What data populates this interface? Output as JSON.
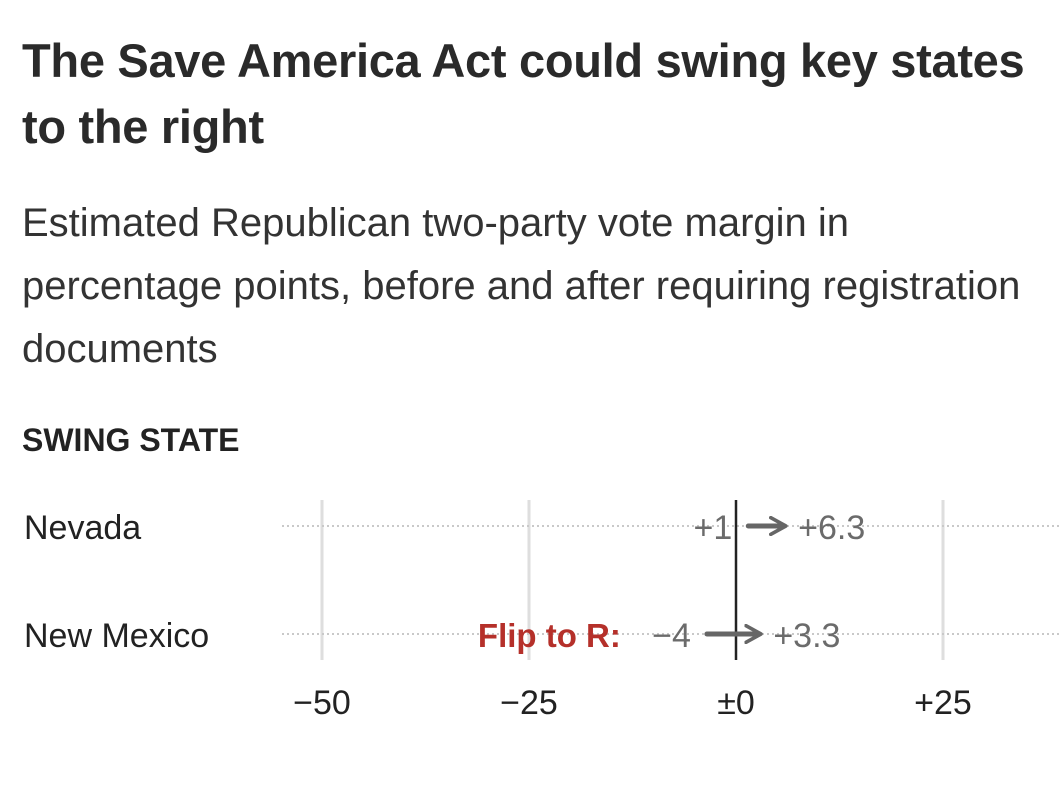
{
  "header": {
    "title": "The Save America Act could swing key states to the right",
    "subtitle": "Estimated Republican two-party vote margin in percentage points, before and after requiring registration documents"
  },
  "section": {
    "label": "SWING STATE"
  },
  "colors": {
    "text": "#222222",
    "muted": "#6b6b6b",
    "arrow": "#666666",
    "flip": "#b5302a",
    "grid": "#dedede",
    "zero": "#222222"
  },
  "chart_data": {
    "type": "arrow",
    "title": "",
    "xlabel": "",
    "ylabel": "",
    "xlim": [
      -50,
      25
    ],
    "x_ticks": [
      -50,
      -25,
      0,
      25
    ],
    "x_tick_labels": [
      "−50",
      "−25",
      "±0",
      "+25"
    ],
    "grid": true,
    "rows": [
      {
        "state": "Nevada",
        "before": 1,
        "after": 6.3,
        "before_label": "+1",
        "after_label": "+6.3",
        "annotation": ""
      },
      {
        "state": "New Mexico",
        "before": -4,
        "after": 3.3,
        "before_label": "−4",
        "after_label": "+3.3",
        "annotation": "Flip to R:"
      }
    ]
  }
}
